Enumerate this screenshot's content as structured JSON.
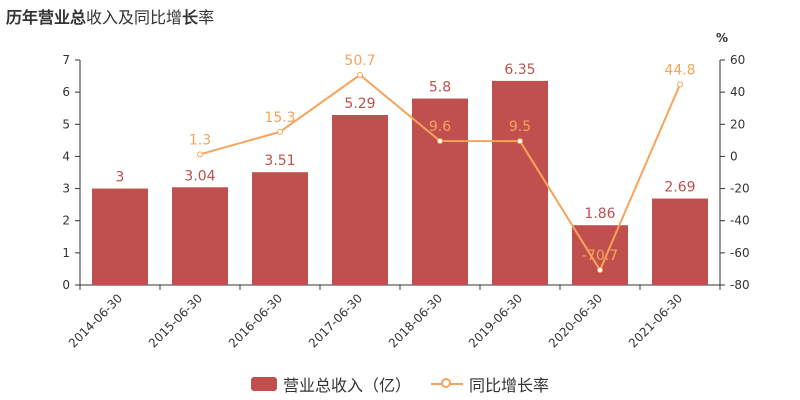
{
  "title": {
    "part1": "历年",
    "part2": "营业总",
    "part3": "收入及同比增",
    "part4": "长",
    "part5": "率"
  },
  "legend": {
    "bar": "营业总收入（亿）",
    "line": "同比增长率"
  },
  "colors": {
    "bar": "#c0504d",
    "line": "#f7a35c",
    "barLabel": "#c0504d",
    "lineLabel": "#f7a35c",
    "axis": "#333333"
  },
  "chart_data": {
    "type": "bar",
    "categories": [
      "2014-06-30",
      "2015-06-30",
      "2016-06-30",
      "2017-06-30",
      "2018-06-30",
      "2019-06-30",
      "2020-06-30",
      "2021-06-30"
    ],
    "series": [
      {
        "name": "营业总收入（亿）",
        "type": "bar",
        "axis": "left",
        "values": [
          3,
          3.04,
          3.51,
          5.29,
          5.8,
          6.35,
          1.86,
          2.69
        ],
        "labels": [
          "3",
          "3.04",
          "3.51",
          "5.29",
          "5.8",
          "6.35",
          "1.86",
          "2.69"
        ]
      },
      {
        "name": "同比增长率",
        "type": "line",
        "axis": "right",
        "values": [
          null,
          1.3,
          15.3,
          50.7,
          9.6,
          9.5,
          -70.7,
          44.8
        ],
        "labels": [
          "",
          "1.3",
          "15.3",
          "50.7",
          "9.6",
          "9.5",
          "-70.7",
          "44.8"
        ]
      }
    ],
    "y_left": {
      "min": 0,
      "max": 7,
      "ticks": [
        0,
        1,
        2,
        3,
        4,
        5,
        6,
        7
      ]
    },
    "y_right": {
      "min": -80,
      "max": 60,
      "ticks": [
        -80,
        -60,
        -40,
        -20,
        0,
        20,
        40,
        60
      ],
      "unit": "%"
    },
    "legend_position": "bottom-center",
    "grid": false
  }
}
